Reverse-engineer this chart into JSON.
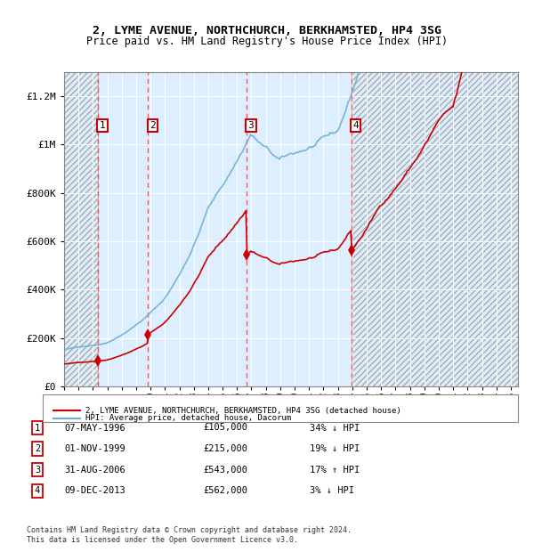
{
  "title1": "2, LYME AVENUE, NORTHCHURCH, BERKHAMSTED, HP4 3SG",
  "title2": "Price paid vs. HM Land Registry's House Price Index (HPI)",
  "xlabel": "",
  "ylabel": "",
  "ylim": [
    0,
    1300000
  ],
  "yticks": [
    0,
    200000,
    400000,
    600000,
    800000,
    1000000,
    1200000
  ],
  "ytick_labels": [
    "£0",
    "£200K",
    "£400K",
    "£600K",
    "£800K",
    "£1M",
    "£1.2M"
  ],
  "hpi_color": "#6baed6",
  "price_color": "#cc0000",
  "sale_marker_color": "#cc0000",
  "bg_color": "#ddeeff",
  "grid_color": "#ffffff",
  "shaded_region_color": "#ddeeff",
  "sale_dates_num": [
    1996.35,
    1999.83,
    2006.66,
    2013.93
  ],
  "sale_prices": [
    105000,
    215000,
    543000,
    562000
  ],
  "sale_labels": [
    "1",
    "2",
    "3",
    "4"
  ],
  "vline_color": "#ff4444",
  "label_box_color": "#cc0000",
  "legend_entries": [
    "2, LYME AVENUE, NORTHCHURCH, BERKHAMSTED, HP4 3SG (detached house)",
    "HPI: Average price, detached house, Dacorum"
  ],
  "table_data": [
    [
      "1",
      "07-MAY-1996",
      "£105,000",
      "34% ↓ HPI"
    ],
    [
      "2",
      "01-NOV-1999",
      "£215,000",
      "19% ↓ HPI"
    ],
    [
      "3",
      "31-AUG-2006",
      "£543,000",
      "17% ↑ HPI"
    ],
    [
      "4",
      "09-DEC-2013",
      "£562,000",
      "3% ↓ HPI"
    ]
  ],
  "footer": "Contains HM Land Registry data © Crown copyright and database right 2024.\nThis data is licensed under the Open Government Licence v3.0.",
  "xmin": 1994.0,
  "xmax": 2025.5
}
